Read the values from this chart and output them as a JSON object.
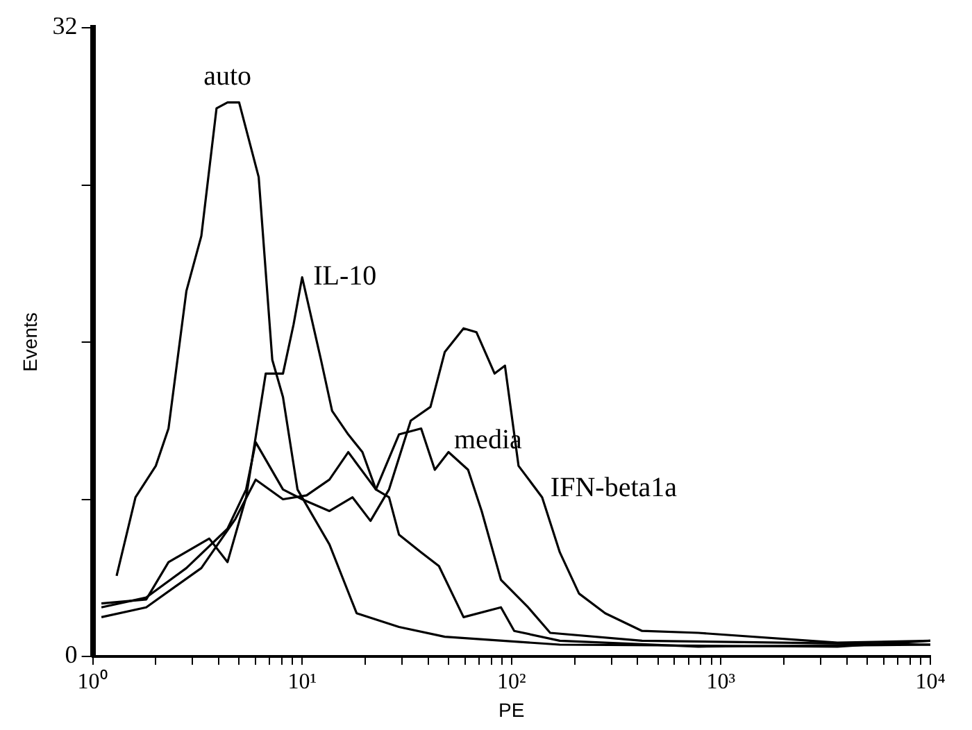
{
  "chart_data": {
    "type": "line",
    "xlabel": "PE",
    "ylabel": "Events",
    "log": "x",
    "grid": false,
    "legend": false,
    "marker": "none",
    "line_style": "solid",
    "xlim": [
      1,
      10000
    ],
    "ylim": [
      0,
      32
    ],
    "xticks": [
      {
        "value": 1,
        "label": "10⁰"
      },
      {
        "value": 2,
        "label": null
      },
      {
        "value": 3,
        "label": null
      },
      {
        "value": 4,
        "label": null
      },
      {
        "value": 5,
        "label": null
      },
      {
        "value": 6,
        "label": null
      },
      {
        "value": 7,
        "label": null
      },
      {
        "value": 8,
        "label": null
      },
      {
        "value": 9,
        "label": null
      },
      {
        "value": 10,
        "label": "10¹"
      },
      {
        "value": 20,
        "label": null
      },
      {
        "value": 30,
        "label": null
      },
      {
        "value": 40,
        "label": null
      },
      {
        "value": 50,
        "label": null
      },
      {
        "value": 60,
        "label": null
      },
      {
        "value": 70,
        "label": null
      },
      {
        "value": 80,
        "label": null
      },
      {
        "value": 90,
        "label": null
      },
      {
        "value": 100,
        "label": "10²"
      },
      {
        "value": 200,
        "label": null
      },
      {
        "value": 300,
        "label": null
      },
      {
        "value": 400,
        "label": null
      },
      {
        "value": 500,
        "label": null
      },
      {
        "value": 600,
        "label": null
      },
      {
        "value": 700,
        "label": null
      },
      {
        "value": 800,
        "label": null
      },
      {
        "value": 900,
        "label": null
      },
      {
        "value": 1000,
        "label": "10³"
      },
      {
        "value": 2000,
        "label": null
      },
      {
        "value": 3000,
        "label": null
      },
      {
        "value": 4000,
        "label": null
      },
      {
        "value": 5000,
        "label": null
      },
      {
        "value": 6000,
        "label": null
      },
      {
        "value": 7000,
        "label": null
      },
      {
        "value": 8000,
        "label": null
      },
      {
        "value": 9000,
        "label": null
      },
      {
        "value": 10000,
        "label": "10⁴"
      }
    ],
    "yticks": [
      0,
      {
        "value": 8,
        "label": null
      },
      {
        "value": 16,
        "label": null
      },
      {
        "value": 24,
        "label": null
      },
      32
    ],
    "series": [
      {
        "name": "auto",
        "color": "#000000",
        "x": [
          1.3,
          1.6,
          2.0,
          2.3,
          2.8,
          3.3,
          3.9,
          4.4,
          5.0,
          6.2,
          7.2,
          8.1,
          9.5,
          13.5,
          18.2,
          29,
          48,
          170,
          3600,
          10000
        ],
        "values": [
          4.1,
          8.1,
          9.7,
          11.6,
          18.6,
          21.4,
          27.9,
          28.2,
          28.2,
          24.4,
          15.1,
          13.2,
          8.5,
          5.7,
          2.2,
          1.5,
          1.0,
          0.6,
          0.5,
          0.8
        ]
      },
      {
        "name": "IL-10",
        "color": "#000000",
        "x": [
          1.1,
          1.8,
          2.3,
          3.6,
          4.4,
          5.4,
          6.7,
          8.1,
          9.1,
          10,
          12.3,
          13.9,
          16.6,
          19.4,
          22.5,
          26,
          29,
          37,
          45,
          59,
          89,
          103,
          170,
          780,
          10000
        ],
        "values": [
          2.7,
          2.9,
          4.8,
          6.0,
          4.8,
          8.1,
          14.4,
          14.4,
          16.9,
          19.3,
          15.1,
          12.5,
          11.3,
          10.4,
          8.5,
          8.1,
          6.2,
          5.3,
          4.6,
          2.0,
          2.5,
          1.3,
          0.8,
          0.5,
          0.6
        ]
      },
      {
        "name": "IFN-beta1a",
        "color": "#000000",
        "x": [
          1.1,
          1.8,
          2.8,
          4.4,
          5.4,
          6.0,
          8.1,
          10,
          13.5,
          17.4,
          21.2,
          26,
          33,
          41,
          48,
          59,
          68,
          83,
          93,
          108,
          140,
          170,
          210,
          280,
          420,
          780,
          3600,
          10000
        ],
        "values": [
          2.5,
          3.0,
          4.5,
          6.5,
          8.5,
          10.9,
          8.5,
          8.0,
          7.4,
          8.1,
          6.9,
          8.5,
          12.0,
          12.7,
          15.5,
          16.7,
          16.5,
          14.4,
          14.8,
          9.7,
          8.1,
          5.3,
          3.2,
          2.2,
          1.3,
          1.2,
          0.7,
          0.8
        ]
      },
      {
        "name": "media",
        "color": "#000000",
        "x": [
          1.1,
          1.8,
          3.3,
          4.8,
          6.0,
          8.1,
          10.5,
          13.5,
          16.6,
          22.5,
          29,
          37,
          43,
          50,
          62,
          72,
          89,
          120,
          153,
          420,
          10000
        ],
        "values": [
          2.0,
          2.5,
          4.5,
          7.0,
          9.0,
          8.0,
          8.2,
          9.0,
          10.4,
          8.5,
          11.3,
          11.6,
          9.5,
          10.4,
          9.5,
          7.4,
          3.9,
          2.5,
          1.2,
          0.8,
          0.6
        ]
      }
    ]
  }
}
